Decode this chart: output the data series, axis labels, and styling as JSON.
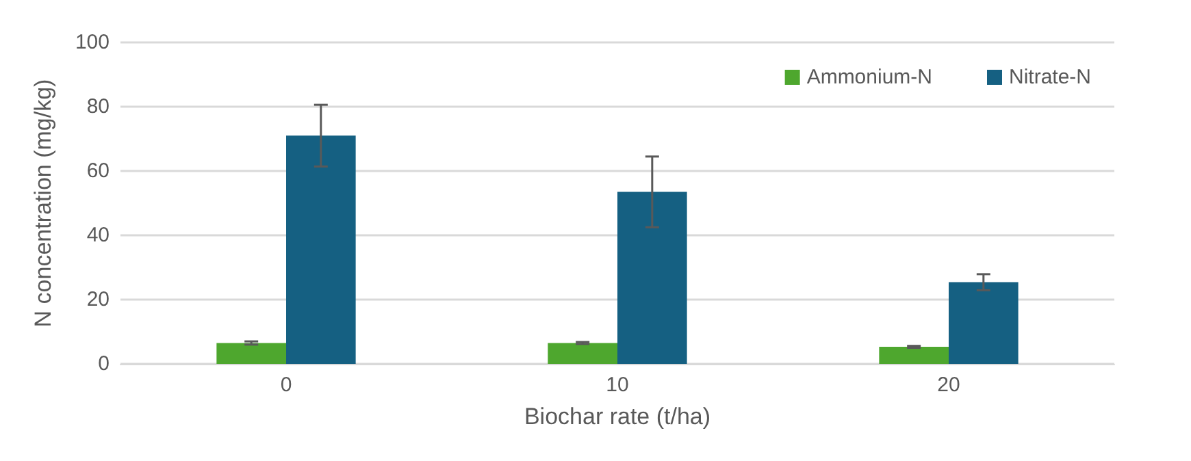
{
  "chart_data": {
    "type": "bar",
    "xlabel": "Biochar rate (t/ha)",
    "ylabel": "N concentration (mg/kg)",
    "categories": [
      "0",
      "10",
      "20"
    ],
    "series": [
      {
        "name": "Ammonium-N",
        "color": "#4ea72e",
        "values": [
          6.5,
          6.5,
          5.3
        ],
        "errors": [
          0.5,
          0.3,
          0.3
        ]
      },
      {
        "name": "Nitrate-N",
        "color": "#156082",
        "values": [
          71,
          53.5,
          25.4
        ],
        "errors": [
          9.6,
          11,
          2.5
        ]
      }
    ],
    "ylim": [
      0,
      100
    ],
    "yticks": [
      0,
      20,
      40,
      60,
      80,
      100
    ],
    "grid": "y",
    "legend": "top right"
  }
}
